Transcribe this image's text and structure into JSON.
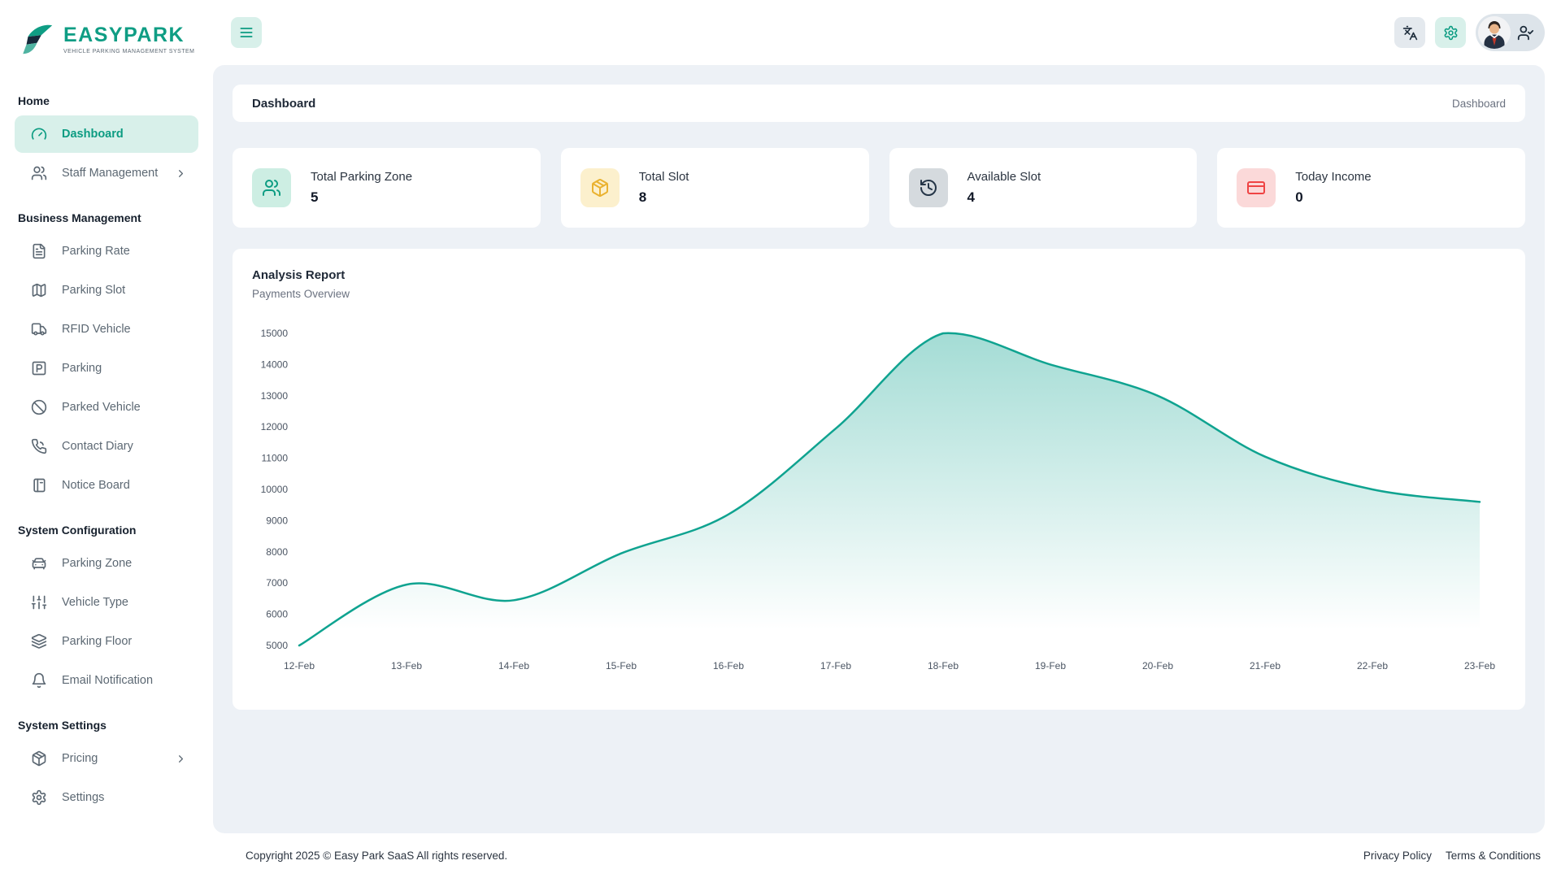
{
  "brand": {
    "name": "EASYPARK",
    "tagline": "VEHICLE PARKING MANAGEMENT SYSTEM"
  },
  "sidebar": {
    "sections": [
      {
        "label": "Home",
        "items": [
          {
            "label": "Dashboard",
            "icon": "gauge",
            "active": true
          },
          {
            "label": "Staff Management",
            "icon": "users",
            "chevron": true
          }
        ]
      },
      {
        "label": "Business Management",
        "items": [
          {
            "label": "Parking Rate",
            "icon": "file-text"
          },
          {
            "label": "Parking Slot",
            "icon": "map"
          },
          {
            "label": "RFID Vehicle",
            "icon": "truck"
          },
          {
            "label": "Parking",
            "icon": "square-parking"
          },
          {
            "label": "Parked Vehicle",
            "icon": "ban"
          },
          {
            "label": "Contact Diary",
            "icon": "phone-call"
          },
          {
            "label": "Notice Board",
            "icon": "notebook"
          }
        ]
      },
      {
        "label": "System Configuration",
        "items": [
          {
            "label": "Parking Zone",
            "icon": "car-front"
          },
          {
            "label": "Vehicle Type",
            "icon": "sliders"
          },
          {
            "label": "Parking Floor",
            "icon": "layers"
          },
          {
            "label": "Email Notification",
            "icon": "bell"
          }
        ]
      },
      {
        "label": "System Settings",
        "items": [
          {
            "label": "Pricing",
            "icon": "package",
            "chevron": true
          },
          {
            "label": "Settings",
            "icon": "gear"
          }
        ]
      }
    ]
  },
  "topbar": {
    "menu_icon": "menu",
    "language_icon": "languages",
    "settings_icon": "gear",
    "user_icon": "user-check"
  },
  "page": {
    "title": "Dashboard",
    "breadcrumb": "Dashboard"
  },
  "stats": [
    {
      "label": "Total Parking Zone",
      "value": "5",
      "icon": "users",
      "color": "#0c9c82",
      "bg": "#cdeee3"
    },
    {
      "label": "Total Slot",
      "value": "8",
      "icon": "package",
      "color": "#eab230",
      "bg": "#fcf0cd"
    },
    {
      "label": "Available Slot",
      "value": "4",
      "icon": "history",
      "color": "#253547",
      "bg": "#d5dade"
    },
    {
      "label": "Today Income",
      "value": "0",
      "icon": "credit-card",
      "color": "#ef4444",
      "bg": "#fbd9d9"
    }
  ],
  "chart_data": {
    "type": "area",
    "title": "Analysis Report",
    "subtitle": "Payments Overview",
    "x": [
      "12-Feb",
      "13-Feb",
      "14-Feb",
      "15-Feb",
      "16-Feb",
      "17-Feb",
      "18-Feb",
      "19-Feb",
      "20-Feb",
      "21-Feb",
      "22-Feb",
      "23-Feb"
    ],
    "values": [
      5000,
      6950,
      6450,
      7950,
      9200,
      11950,
      15000,
      14000,
      13000,
      11050,
      10000,
      9600
    ],
    "ylim": [
      5000,
      15000
    ],
    "ytick_step": 1000,
    "grid": false,
    "legend": false,
    "line_color": "#0fa390",
    "fill_from": "rgba(15,163,144,0.38)",
    "fill_to": "rgba(15,163,144,0)"
  },
  "footer": {
    "copyright": "Copyright 2025 © Easy Park SaaS All rights reserved.",
    "links": [
      "Privacy Policy",
      "Terms & Conditions"
    ]
  },
  "colors": {
    "brand": "#0c9c82",
    "brand_light": "#d8f0ea",
    "panel_bg": "#edf1f6"
  }
}
